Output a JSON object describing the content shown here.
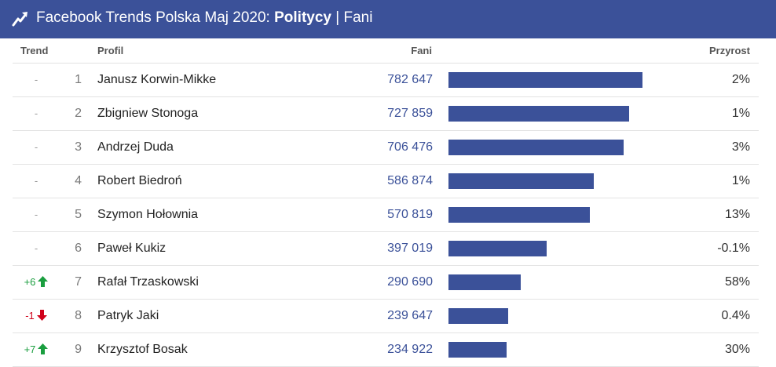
{
  "header": {
    "title_prefix": "Facebook Trends Polska Maj 2020: ",
    "title_category": "Politycy",
    "title_suffix": " | Fani",
    "logo_icon": "trend-arrow-icon"
  },
  "columns": {
    "trend": "Trend",
    "profile": "Profil",
    "fans": "Fani",
    "growth": "Przyrost"
  },
  "colors": {
    "brand": "#3b5199",
    "up": "#1a9e3f",
    "down": "#d0021b",
    "neutral": "#9a9a9a"
  },
  "chart_data": {
    "type": "bar",
    "title": "Facebook Trends Polska Maj 2020: Politycy | Fani",
    "xlim": [
      0,
      950000
    ],
    "rows": [
      {
        "trend": "-",
        "dir": "none",
        "rank": "1",
        "name": "Janusz Korwin-Mikke",
        "fans_label": "782 647",
        "fans": 782647,
        "growth": "2%"
      },
      {
        "trend": "-",
        "dir": "none",
        "rank": "2",
        "name": "Zbigniew Stonoga",
        "fans_label": "727 859",
        "fans": 727859,
        "growth": "1%"
      },
      {
        "trend": "-",
        "dir": "none",
        "rank": "3",
        "name": "Andrzej Duda",
        "fans_label": "706 476",
        "fans": 706476,
        "growth": "3%"
      },
      {
        "trend": "-",
        "dir": "none",
        "rank": "4",
        "name": "Robert Biedroń",
        "fans_label": "586 874",
        "fans": 586874,
        "growth": "1%"
      },
      {
        "trend": "-",
        "dir": "none",
        "rank": "5",
        "name": "Szymon Hołownia",
        "fans_label": "570 819",
        "fans": 570819,
        "growth": "13%"
      },
      {
        "trend": "-",
        "dir": "none",
        "rank": "6",
        "name": "Paweł Kukiz",
        "fans_label": "397 019",
        "fans": 397019,
        "growth": "-0.1%"
      },
      {
        "trend": "+6",
        "dir": "up",
        "rank": "7",
        "name": "Rafał Trzaskowski",
        "fans_label": "290 690",
        "fans": 290690,
        "growth": "58%"
      },
      {
        "trend": "-1",
        "dir": "down",
        "rank": "8",
        "name": "Patryk Jaki",
        "fans_label": "239 647",
        "fans": 239647,
        "growth": "0.4%"
      },
      {
        "trend": "+7",
        "dir": "up",
        "rank": "9",
        "name": "Krzysztof Bosak",
        "fans_label": "234 922",
        "fans": 234922,
        "growth": "30%"
      }
    ]
  }
}
